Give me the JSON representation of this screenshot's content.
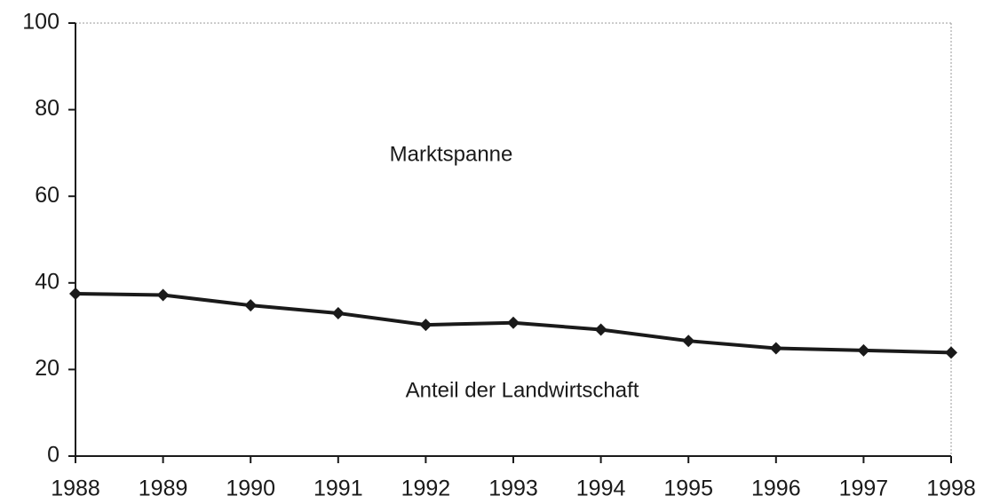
{
  "chart_data": {
    "type": "line",
    "x": [
      1988,
      1989,
      1990,
      1991,
      1992,
      1993,
      1994,
      1995,
      1996,
      1997,
      1998
    ],
    "series": [
      {
        "color": "#1a1a1a",
        "values": [
          37.5,
          37.2,
          34.8,
          33.0,
          30.3,
          30.8,
          29.2,
          26.6,
          24.9,
          24.4,
          23.9
        ]
      }
    ],
    "xlim": [
      1988,
      1998
    ],
    "xticks": [
      1988,
      1989,
      1990,
      1991,
      1992,
      1993,
      1994,
      1995,
      1996,
      1997,
      1998
    ],
    "ylim": [
      0,
      100
    ],
    "yticks": [
      0,
      20,
      40,
      60,
      80,
      100
    ],
    "annotations": [
      "Marktspanne",
      "Anteil der Landwirtschaft"
    ],
    "grid": false
  }
}
